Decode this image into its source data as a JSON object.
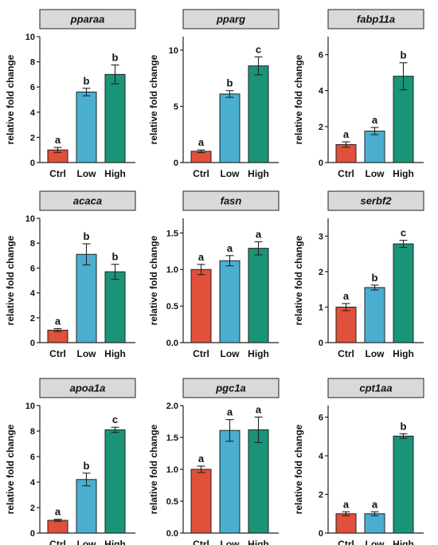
{
  "colors": {
    "Ctrl": "#e0503a",
    "Low": "#4aaed0",
    "High": "#1a9478",
    "header_bg": "#d9d9d9",
    "axis": "#222222"
  },
  "chart_data": [
    {
      "type": "bar",
      "title": "pparaa",
      "ylabel": "relative fold change",
      "categories": [
        "Ctrl",
        "Low",
        "High"
      ],
      "values": [
        1.0,
        5.6,
        7.0
      ],
      "errors": [
        0.2,
        0.3,
        0.75
      ],
      "letters": [
        "a",
        "b",
        "b"
      ],
      "ylim": [
        0,
        10
      ],
      "yticks": [
        "0",
        "2",
        "4",
        "6",
        "8",
        "10"
      ]
    },
    {
      "type": "bar",
      "title": "pparg",
      "ylabel": "relative fold change",
      "categories": [
        "Ctrl",
        "Low",
        "High"
      ],
      "values": [
        1.0,
        6.1,
        8.6
      ],
      "errors": [
        0.12,
        0.3,
        0.8
      ],
      "letters": [
        "a",
        "b",
        "c"
      ],
      "ylim": [
        0,
        11.2
      ],
      "yticks": [
        "0",
        "5",
        "10"
      ]
    },
    {
      "type": "bar",
      "title": "fabp11a",
      "ylabel": "relative fold change",
      "categories": [
        "Ctrl",
        "Low",
        "High"
      ],
      "values": [
        1.0,
        1.75,
        4.8
      ],
      "errors": [
        0.15,
        0.2,
        0.75
      ],
      "letters": [
        "a",
        "a",
        "b"
      ],
      "ylim": [
        0,
        7
      ],
      "yticks": [
        "0",
        "2",
        "4",
        "6"
      ]
    },
    {
      "type": "bar",
      "title": "acaca",
      "ylabel": "relative fold change",
      "categories": [
        "Ctrl",
        "Low",
        "High"
      ],
      "values": [
        1.0,
        7.1,
        5.7
      ],
      "errors": [
        0.12,
        0.85,
        0.6
      ],
      "letters": [
        "a",
        "b",
        "b"
      ],
      "ylim": [
        0,
        10
      ],
      "yticks": [
        "0",
        "2",
        "4",
        "6",
        "8",
        "10"
      ]
    },
    {
      "type": "bar",
      "title": "fasn",
      "ylabel": "relative fold change",
      "categories": [
        "Ctrl",
        "Low",
        "High"
      ],
      "values": [
        1.0,
        1.12,
        1.29
      ],
      "errors": [
        0.07,
        0.07,
        0.09
      ],
      "letters": [
        "a",
        "a",
        "a"
      ],
      "ylim": [
        0,
        1.7
      ],
      "yticks": [
        "0.0",
        "0.5",
        "1.0",
        "1.5"
      ]
    },
    {
      "type": "bar",
      "title": "serbf2",
      "ylabel": "relative fold change",
      "categories": [
        "Ctrl",
        "Low",
        "High"
      ],
      "values": [
        1.0,
        1.55,
        2.78
      ],
      "errors": [
        0.1,
        0.07,
        0.1
      ],
      "letters": [
        "a",
        "b",
        "c"
      ],
      "ylim": [
        0,
        3.5
      ],
      "yticks": [
        "0",
        "1",
        "2",
        "3"
      ]
    },
    {
      "type": "bar",
      "title": "apoa1a",
      "ylabel": "relative fold change",
      "categories": [
        "Ctrl",
        "Low",
        "High"
      ],
      "values": [
        1.0,
        4.2,
        8.1
      ],
      "errors": [
        0.08,
        0.5,
        0.2
      ],
      "letters": [
        "a",
        "b",
        "c"
      ],
      "ylim": [
        0,
        10
      ],
      "yticks": [
        "0",
        "2",
        "4",
        "6",
        "8",
        "10"
      ]
    },
    {
      "type": "bar",
      "title": "pgc1a",
      "ylabel": "relative fold change",
      "categories": [
        "Ctrl",
        "Low",
        "High"
      ],
      "values": [
        1.0,
        1.61,
        1.62
      ],
      "errors": [
        0.05,
        0.17,
        0.2
      ],
      "letters": [
        "a",
        "a",
        "a"
      ],
      "ylim": [
        0,
        2.0
      ],
      "yticks": [
        "0.0",
        "0.5",
        "1.0",
        "1.5",
        "2.0"
      ]
    },
    {
      "type": "bar",
      "title": "cpt1aa",
      "ylabel": "relative fold change",
      "categories": [
        "Ctrl",
        "Low",
        "High"
      ],
      "values": [
        1.0,
        1.0,
        5.02
      ],
      "errors": [
        0.1,
        0.1,
        0.12
      ],
      "letters": [
        "a",
        "a",
        "b"
      ],
      "ylim": [
        0,
        6.6
      ],
      "yticks": [
        "0",
        "2",
        "4",
        "6"
      ]
    }
  ]
}
